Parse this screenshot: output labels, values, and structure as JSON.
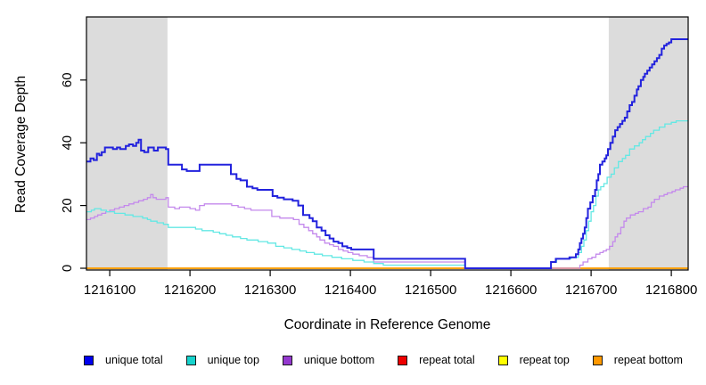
{
  "figure": {
    "background": "#ffffff"
  },
  "chart_data": {
    "type": "line",
    "subtype": "step",
    "title": "",
    "xlabel": "Coordinate in Reference Genome",
    "ylabel": "Read Coverage Depth",
    "xlim": [
      1216071,
      1216821
    ],
    "ylim": [
      0,
      80
    ],
    "grid": false,
    "x_ticks": [
      {
        "value": 1216100,
        "label": "1216100"
      },
      {
        "value": 1216200,
        "label": "1216200"
      },
      {
        "value": 1216300,
        "label": "1216300"
      },
      {
        "value": 1216400,
        "label": "1216400"
      },
      {
        "value": 1216500,
        "label": "1216500"
      },
      {
        "value": 1216600,
        "label": "1216600"
      },
      {
        "value": 1216700,
        "label": "1216700"
      },
      {
        "value": 1216800,
        "label": "1216800"
      }
    ],
    "y_ticks": [
      {
        "value": 0,
        "label": "0"
      },
      {
        "value": 20,
        "label": "20"
      },
      {
        "value": 40,
        "label": "40"
      },
      {
        "value": 60,
        "label": "60"
      }
    ],
    "shaded_regions": [
      {
        "x0": 1216071,
        "x1": 1216172,
        "color": "#dcdcdc"
      },
      {
        "x0": 1216722,
        "x1": 1216821,
        "color": "#dcdcdc"
      }
    ],
    "axis_color": "#000000",
    "series": [
      {
        "name": "repeat total",
        "line_color": "#e00000",
        "legend_color": "#ee0000",
        "width": 1.2,
        "points": [
          [
            1216071,
            0
          ],
          [
            1216821,
            0
          ]
        ]
      },
      {
        "name": "repeat top",
        "line_color": "#ffe800",
        "legend_color": "#ffff00",
        "width": 1.2,
        "points": [
          [
            1216071,
            0
          ],
          [
            1216821,
            0
          ]
        ]
      },
      {
        "name": "repeat bottom",
        "line_color": "#ff9d00",
        "legend_color": "#ff9800",
        "width": 1.8,
        "points": [
          [
            1216071,
            0
          ],
          [
            1216821,
            0
          ]
        ]
      },
      {
        "name": "unique bottom",
        "line_color": "#c489ec",
        "legend_color": "#9438cf",
        "width": 1.3,
        "points": [
          [
            1216071,
            15.5
          ],
          [
            1216076,
            16
          ],
          [
            1216081,
            16.5
          ],
          [
            1216085,
            17
          ],
          [
            1216090,
            17.5
          ],
          [
            1216095,
            18
          ],
          [
            1216100,
            18.5
          ],
          [
            1216106,
            19
          ],
          [
            1216112,
            19.5
          ],
          [
            1216118,
            20
          ],
          [
            1216124,
            20.5
          ],
          [
            1216130,
            21
          ],
          [
            1216136,
            21.5
          ],
          [
            1216142,
            22
          ],
          [
            1216147,
            22.5
          ],
          [
            1216151,
            23.5
          ],
          [
            1216154,
            22.5
          ],
          [
            1216158,
            22
          ],
          [
            1216170,
            22.5
          ],
          [
            1216173,
            19.5
          ],
          [
            1216181,
            19
          ],
          [
            1216187,
            19.5
          ],
          [
            1216200,
            19
          ],
          [
            1216207,
            18.5
          ],
          [
            1216212,
            20
          ],
          [
            1216218,
            20.5
          ],
          [
            1216247,
            20.5
          ],
          [
            1216252,
            20
          ],
          [
            1216260,
            19.5
          ],
          [
            1216268,
            19
          ],
          [
            1216276,
            18.5
          ],
          [
            1216302,
            16.5
          ],
          [
            1216312,
            16
          ],
          [
            1216329,
            15.5
          ],
          [
            1216336,
            14
          ],
          [
            1216342,
            13
          ],
          [
            1216348,
            12
          ],
          [
            1216353,
            11
          ],
          [
            1216358,
            10
          ],
          [
            1216362,
            9
          ],
          [
            1216368,
            8
          ],
          [
            1216374,
            7.5
          ],
          [
            1216379,
            7
          ],
          [
            1216385,
            6
          ],
          [
            1216391,
            5.5
          ],
          [
            1216397,
            5
          ],
          [
            1216403,
            4.5
          ],
          [
            1216411,
            4
          ],
          [
            1216421,
            3.5
          ],
          [
            1216429,
            2
          ],
          [
            1216543,
            0
          ],
          [
            1216686,
            1
          ],
          [
            1216690,
            2
          ],
          [
            1216696,
            3
          ],
          [
            1216701,
            3.5
          ],
          [
            1216706,
            4.5
          ],
          [
            1216711,
            5
          ],
          [
            1216715,
            5.5
          ],
          [
            1216719,
            6
          ],
          [
            1216723,
            7
          ],
          [
            1216727,
            8.5
          ],
          [
            1216730,
            10
          ],
          [
            1216733,
            11
          ],
          [
            1216737,
            13
          ],
          [
            1216741,
            15
          ],
          [
            1216744,
            16
          ],
          [
            1216749,
            17
          ],
          [
            1216755,
            17.5
          ],
          [
            1216759,
            18
          ],
          [
            1216765,
            19
          ],
          [
            1216771,
            19.5
          ],
          [
            1216775,
            21
          ],
          [
            1216779,
            22
          ],
          [
            1216785,
            23
          ],
          [
            1216791,
            23.5
          ],
          [
            1216795,
            24
          ],
          [
            1216801,
            24.5
          ],
          [
            1216805,
            25
          ],
          [
            1216811,
            25.5
          ],
          [
            1216815,
            26
          ],
          [
            1216821,
            26
          ]
        ]
      },
      {
        "name": "unique top",
        "line_color": "#63e8e4",
        "legend_color": "#16d3cd",
        "width": 1.3,
        "points": [
          [
            1216071,
            18
          ],
          [
            1216077,
            18.5
          ],
          [
            1216081,
            19
          ],
          [
            1216089,
            18.5
          ],
          [
            1216096,
            18
          ],
          [
            1216106,
            17.5
          ],
          [
            1216119,
            17
          ],
          [
            1216129,
            16.5
          ],
          [
            1216141,
            16
          ],
          [
            1216147,
            15.5
          ],
          [
            1216151,
            15
          ],
          [
            1216159,
            14.5
          ],
          [
            1216167,
            14
          ],
          [
            1216173,
            13
          ],
          [
            1216201,
            13
          ],
          [
            1216207,
            12.5
          ],
          [
            1216215,
            12
          ],
          [
            1216229,
            11.5
          ],
          [
            1216237,
            11
          ],
          [
            1216245,
            10.5
          ],
          [
            1216253,
            10
          ],
          [
            1216263,
            9.5
          ],
          [
            1216271,
            9
          ],
          [
            1216285,
            8.5
          ],
          [
            1216297,
            8
          ],
          [
            1216307,
            7
          ],
          [
            1216317,
            6.5
          ],
          [
            1216327,
            6
          ],
          [
            1216337,
            5.5
          ],
          [
            1216345,
            5
          ],
          [
            1216355,
            4.5
          ],
          [
            1216365,
            4
          ],
          [
            1216377,
            3.5
          ],
          [
            1216389,
            3
          ],
          [
            1216403,
            2.5
          ],
          [
            1216417,
            2
          ],
          [
            1216429,
            1.5
          ],
          [
            1216441,
            1
          ],
          [
            1216543,
            0
          ],
          [
            1216650,
            2
          ],
          [
            1216657,
            3
          ],
          [
            1216675,
            3.5
          ],
          [
            1216684,
            5
          ],
          [
            1216688,
            7
          ],
          [
            1216691,
            9
          ],
          [
            1216694,
            12
          ],
          [
            1216697,
            15
          ],
          [
            1216700,
            18
          ],
          [
            1216703,
            20
          ],
          [
            1216706,
            23
          ],
          [
            1216709,
            25
          ],
          [
            1216712,
            26
          ],
          [
            1216716,
            27
          ],
          [
            1216720,
            29
          ],
          [
            1216725,
            30
          ],
          [
            1216729,
            32
          ],
          [
            1216734,
            34
          ],
          [
            1216739,
            35
          ],
          [
            1216743,
            36
          ],
          [
            1216748,
            38
          ],
          [
            1216754,
            39
          ],
          [
            1216760,
            40
          ],
          [
            1216764,
            41
          ],
          [
            1216768,
            42
          ],
          [
            1216774,
            43
          ],
          [
            1216778,
            44
          ],
          [
            1216785,
            45
          ],
          [
            1216792,
            46
          ],
          [
            1216800,
            46.5
          ],
          [
            1216806,
            47
          ],
          [
            1216821,
            47
          ]
        ]
      },
      {
        "name": "unique total",
        "line_color": "#2222dd",
        "legend_color": "#0000ee",
        "width": 2,
        "points": [
          [
            1216071,
            34
          ],
          [
            1216076,
            35
          ],
          [
            1216080,
            34.5
          ],
          [
            1216084,
            36.5
          ],
          [
            1216087,
            36
          ],
          [
            1216090,
            37
          ],
          [
            1216094,
            38.5
          ],
          [
            1216104,
            38
          ],
          [
            1216109,
            38.5
          ],
          [
            1216113,
            38
          ],
          [
            1216120,
            39
          ],
          [
            1216124,
            39.5
          ],
          [
            1216129,
            39
          ],
          [
            1216133,
            40
          ],
          [
            1216136,
            41
          ],
          [
            1216139,
            37.5
          ],
          [
            1216143,
            37
          ],
          [
            1216148,
            38.5
          ],
          [
            1216155,
            37.5
          ],
          [
            1216160,
            38.5
          ],
          [
            1216170,
            38
          ],
          [
            1216173,
            33
          ],
          [
            1216187,
            33
          ],
          [
            1216190,
            31.5
          ],
          [
            1216196,
            31
          ],
          [
            1216209,
            31
          ],
          [
            1216212,
            33
          ],
          [
            1216247,
            33
          ],
          [
            1216251,
            30
          ],
          [
            1216258,
            28.5
          ],
          [
            1216263,
            28
          ],
          [
            1216271,
            26
          ],
          [
            1216278,
            25.5
          ],
          [
            1216284,
            25
          ],
          [
            1216303,
            23
          ],
          [
            1216309,
            22.5
          ],
          [
            1216317,
            22
          ],
          [
            1216328,
            21.5
          ],
          [
            1216335,
            20
          ],
          [
            1216341,
            17
          ],
          [
            1216349,
            16
          ],
          [
            1216353,
            15
          ],
          [
            1216358,
            13
          ],
          [
            1216364,
            12
          ],
          [
            1216369,
            10.5
          ],
          [
            1216374,
            9.5
          ],
          [
            1216379,
            8.5
          ],
          [
            1216385,
            8
          ],
          [
            1216390,
            7
          ],
          [
            1216396,
            6.5
          ],
          [
            1216401,
            6
          ],
          [
            1216429,
            3
          ],
          [
            1216543,
            0
          ],
          [
            1216650,
            2
          ],
          [
            1216656,
            3
          ],
          [
            1216673,
            3.5
          ],
          [
            1216681,
            4.5
          ],
          [
            1216684,
            6
          ],
          [
            1216686,
            8
          ],
          [
            1216688,
            9.5
          ],
          [
            1216690,
            11
          ],
          [
            1216692,
            13
          ],
          [
            1216694,
            16
          ],
          [
            1216696,
            19
          ],
          [
            1216699,
            21
          ],
          [
            1216702,
            23
          ],
          [
            1216705,
            25
          ],
          [
            1216707,
            28
          ],
          [
            1216709,
            30
          ],
          [
            1216711,
            33
          ],
          [
            1216714,
            34
          ],
          [
            1216717,
            35
          ],
          [
            1216719,
            36
          ],
          [
            1216721,
            38
          ],
          [
            1216724,
            40
          ],
          [
            1216727,
            42
          ],
          [
            1216730,
            44
          ],
          [
            1216733,
            45
          ],
          [
            1216736,
            46
          ],
          [
            1216739,
            47
          ],
          [
            1216742,
            48
          ],
          [
            1216745,
            50
          ],
          [
            1216748,
            52
          ],
          [
            1216751,
            53
          ],
          [
            1216754,
            55
          ],
          [
            1216757,
            57
          ],
          [
            1216759,
            58
          ],
          [
            1216762,
            60
          ],
          [
            1216765,
            61
          ],
          [
            1216767,
            62
          ],
          [
            1216770,
            63
          ],
          [
            1216773,
            64
          ],
          [
            1216776,
            65
          ],
          [
            1216779,
            66
          ],
          [
            1216782,
            67
          ],
          [
            1216785,
            68
          ],
          [
            1216788,
            70
          ],
          [
            1216791,
            71
          ],
          [
            1216794,
            71.5
          ],
          [
            1216797,
            72
          ],
          [
            1216800,
            73
          ],
          [
            1216821,
            73
          ]
        ]
      }
    ],
    "legend": {
      "position": "bottom",
      "items": [
        {
          "label": "unique total",
          "color": "#0000ee"
        },
        {
          "label": "unique top",
          "color": "#16d3cd"
        },
        {
          "label": "unique bottom",
          "color": "#9438cf"
        },
        {
          "label": "repeat total",
          "color": "#ee0000"
        },
        {
          "label": "repeat top",
          "color": "#ffff00"
        },
        {
          "label": "repeat bottom",
          "color": "#ff9800"
        }
      ]
    }
  }
}
